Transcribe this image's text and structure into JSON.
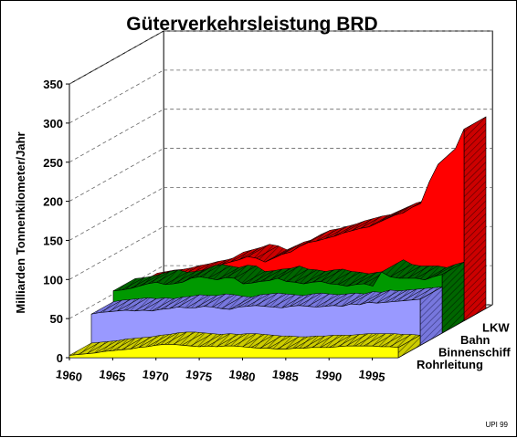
{
  "chart_data": {
    "type": "area",
    "title": "Güterverkehrsleistung BRD",
    "ylabel": "Milliarden Tonnenkilometer/Jahr",
    "xlabel": "",
    "ylim": [
      0,
      350
    ],
    "yticks": [
      "0",
      "50",
      "100",
      "150",
      "200",
      "250",
      "300",
      "350"
    ],
    "xticks": [
      "1960",
      "1965",
      "1970",
      "1975",
      "1980",
      "1985",
      "1990",
      "1995"
    ],
    "grid": true,
    "x": [
      1960,
      1961,
      1962,
      1963,
      1964,
      1965,
      1966,
      1967,
      1968,
      1969,
      1970,
      1971,
      1972,
      1973,
      1974,
      1975,
      1976,
      1977,
      1978,
      1979,
      1980,
      1981,
      1982,
      1983,
      1984,
      1985,
      1986,
      1987,
      1988,
      1989,
      1990,
      1991,
      1992,
      1993,
      1994,
      1995,
      1996,
      1997,
      1998
    ],
    "series": [
      {
        "name": "Rohrleitung",
        "color": "#ffff00",
        "values": [
          3,
          4,
          5,
          6,
          8,
          9,
          10,
          11,
          13,
          14,
          16,
          17,
          17,
          16,
          15,
          14,
          15,
          14,
          15,
          15,
          14,
          13,
          12,
          12,
          11,
          11,
          12,
          12,
          13,
          13,
          13,
          14,
          15,
          15,
          15,
          15,
          14,
          14,
          13
        ]
      },
      {
        "name": "Binnenschiff",
        "color": "#9999ff",
        "values": [
          40,
          42,
          43,
          44,
          45,
          44,
          45,
          44,
          46,
          47,
          49,
          48,
          48,
          50,
          49,
          47,
          46,
          49,
          50,
          51,
          50,
          49,
          48,
          50,
          51,
          50,
          49,
          50,
          51,
          50,
          53,
          52,
          55,
          54,
          55,
          56,
          57,
          58,
          59
        ]
      },
      {
        "name": "Bahn",
        "color": "#009900",
        "values": [
          54,
          55,
          57,
          60,
          63,
          65,
          62,
          63,
          65,
          70,
          72,
          70,
          68,
          71,
          70,
          63,
          64,
          66,
          67,
          70,
          66,
          65,
          63,
          65,
          66,
          63,
          62,
          60,
          62,
          63,
          60,
          78,
          72,
          70,
          70,
          70,
          68,
          72,
          75
        ]
      },
      {
        "name": "LKW",
        "color": "#ff0000",
        "values": [
          45,
          47,
          49,
          50,
          52,
          55,
          57,
          60,
          62,
          65,
          72,
          75,
          78,
          82,
          80,
          75,
          80,
          85,
          88,
          95,
          100,
          102,
          105,
          108,
          112,
          115,
          118,
          120,
          125,
          130,
          135,
          138,
          145,
          150,
          178,
          200,
          210,
          220,
          245
        ]
      }
    ],
    "annotation": "UPI 99"
  }
}
